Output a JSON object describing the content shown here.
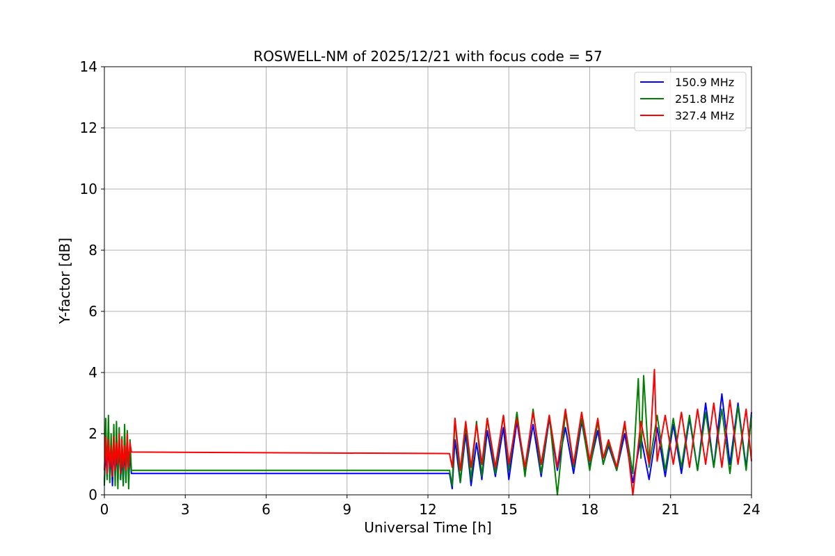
{
  "chart_data": {
    "type": "line",
    "title": "ROSWELL-NM of 2025/12/21 with focus code = 57",
    "xlabel": "Universal Time [h]",
    "ylabel": "Y-factor [dB]",
    "xlim": [
      0,
      24
    ],
    "ylim": [
      0,
      14
    ],
    "xticks": [
      0,
      3,
      6,
      9,
      12,
      15,
      18,
      21,
      24
    ],
    "xtick_labels": [
      "0",
      "3",
      "6",
      "9",
      "12",
      "15",
      "18",
      "21",
      "24"
    ],
    "yticks": [
      0,
      2,
      4,
      6,
      8,
      10,
      12,
      14
    ],
    "ytick_labels": [
      "0",
      "2",
      "4",
      "6",
      "8",
      "10",
      "12",
      "14"
    ],
    "grid": true,
    "legend_position": "top-right",
    "series": [
      {
        "name": "150.9 MHz",
        "color": "#0000ff",
        "x": [
          0.0,
          0.05,
          0.1,
          0.15,
          0.2,
          0.25,
          0.3,
          0.35,
          0.4,
          0.45,
          0.5,
          0.55,
          0.6,
          0.65,
          0.7,
          0.75,
          0.8,
          0.85,
          0.9,
          0.95,
          1.0,
          12.8,
          12.9,
          13.0,
          13.2,
          13.4,
          13.6,
          13.8,
          14.0,
          14.2,
          14.5,
          14.8,
          15.0,
          15.3,
          15.6,
          15.9,
          16.2,
          16.5,
          16.8,
          17.1,
          17.4,
          17.7,
          18.0,
          18.3,
          18.5,
          18.7,
          19.0,
          19.3,
          19.6,
          19.9,
          20.2,
          20.5,
          20.8,
          21.1,
          21.4,
          21.7,
          22.0,
          22.3,
          22.6,
          22.9,
          23.2,
          23.5,
          23.8,
          24.0
        ],
        "y": [
          0.4,
          1.5,
          0.6,
          1.8,
          0.5,
          1.4,
          0.3,
          1.7,
          0.6,
          1.5,
          0.4,
          1.8,
          0.5,
          1.3,
          0.3,
          1.6,
          0.5,
          1.9,
          0.4,
          1.4,
          0.7,
          0.7,
          0.2,
          1.8,
          0.4,
          2.0,
          0.3,
          1.7,
          0.5,
          2.1,
          0.6,
          2.2,
          0.5,
          2.4,
          0.7,
          2.3,
          0.6,
          2.5,
          0.8,
          2.2,
          0.7,
          2.4,
          0.9,
          2.1,
          1.0,
          1.6,
          0.8,
          2.0,
          0.4,
          1.9,
          0.5,
          2.2,
          0.6,
          2.3,
          0.7,
          2.5,
          0.8,
          3.0,
          0.9,
          3.3,
          1.0,
          3.0,
          0.9,
          2.7
        ]
      },
      {
        "name": "251.8 MHz",
        "color": "#008000",
        "x": [
          0.0,
          0.05,
          0.1,
          0.15,
          0.2,
          0.25,
          0.3,
          0.35,
          0.4,
          0.45,
          0.5,
          0.55,
          0.6,
          0.65,
          0.7,
          0.75,
          0.8,
          0.85,
          0.9,
          0.95,
          1.0,
          12.8,
          12.9,
          13.0,
          13.2,
          13.4,
          13.6,
          13.8,
          14.0,
          14.2,
          14.5,
          14.8,
          15.0,
          15.3,
          15.6,
          15.9,
          16.2,
          16.5,
          16.8,
          17.1,
          17.4,
          17.7,
          18.0,
          18.3,
          18.5,
          18.7,
          19.0,
          19.3,
          19.6,
          19.8,
          19.9,
          20.0,
          20.2,
          20.5,
          20.8,
          21.1,
          21.4,
          21.7,
          22.0,
          22.3,
          22.6,
          22.9,
          23.2,
          23.5,
          23.8,
          24.0
        ],
        "y": [
          0.3,
          2.5,
          0.5,
          2.6,
          0.4,
          2.0,
          0.6,
          2.3,
          0.3,
          2.4,
          0.2,
          2.2,
          0.5,
          1.9,
          0.3,
          2.3,
          0.4,
          2.1,
          0.2,
          1.8,
          0.8,
          0.8,
          0.3,
          2.5,
          0.4,
          2.3,
          0.5,
          2.4,
          0.6,
          2.5,
          0.7,
          2.6,
          0.8,
          2.7,
          0.6,
          2.8,
          0.7,
          2.6,
          0.0,
          2.7,
          0.9,
          2.5,
          0.8,
          2.4,
          1.0,
          1.7,
          0.8,
          2.3,
          0.7,
          3.8,
          1.2,
          3.9,
          0.9,
          2.6,
          0.8,
          2.5,
          0.9,
          2.6,
          0.8,
          2.7,
          0.9,
          2.8,
          0.7,
          2.9,
          0.8,
          2.6
        ]
      },
      {
        "name": "327.4 MHz",
        "color": "#ff0000",
        "x": [
          0.0,
          0.05,
          0.1,
          0.15,
          0.2,
          0.25,
          0.3,
          0.35,
          0.4,
          0.45,
          0.5,
          0.55,
          0.6,
          0.65,
          0.7,
          0.75,
          0.8,
          0.85,
          0.9,
          0.95,
          1.0,
          12.8,
          12.9,
          13.0,
          13.2,
          13.4,
          13.6,
          13.8,
          14.0,
          14.2,
          14.5,
          14.8,
          15.0,
          15.3,
          15.6,
          15.9,
          16.2,
          16.5,
          16.8,
          17.1,
          17.4,
          17.7,
          18.0,
          18.3,
          18.5,
          18.7,
          19.0,
          19.3,
          19.6,
          19.9,
          20.2,
          20.4,
          20.5,
          20.8,
          21.1,
          21.4,
          21.7,
          22.0,
          22.3,
          22.6,
          22.9,
          23.2,
          23.5,
          23.8,
          24.0
        ],
        "y": [
          0.8,
          1.9,
          0.7,
          1.8,
          0.9,
          1.6,
          0.6,
          1.9,
          0.8,
          1.7,
          1.0,
          2.0,
          0.7,
          1.8,
          0.9,
          1.6,
          0.8,
          2.0,
          0.9,
          1.7,
          1.4,
          1.35,
          0.9,
          2.5,
          0.8,
          2.4,
          0.9,
          2.3,
          1.0,
          2.5,
          0.9,
          2.6,
          1.0,
          2.5,
          0.9,
          2.7,
          1.0,
          2.6,
          0.9,
          2.8,
          1.0,
          2.7,
          1.1,
          2.5,
          1.2,
          1.8,
          0.9,
          2.4,
          0.0,
          2.4,
          1.0,
          4.1,
          1.1,
          2.6,
          1.0,
          2.7,
          0.9,
          2.8,
          1.0,
          3.0,
          0.9,
          3.1,
          1.0,
          2.8,
          1.1
        ]
      }
    ]
  }
}
